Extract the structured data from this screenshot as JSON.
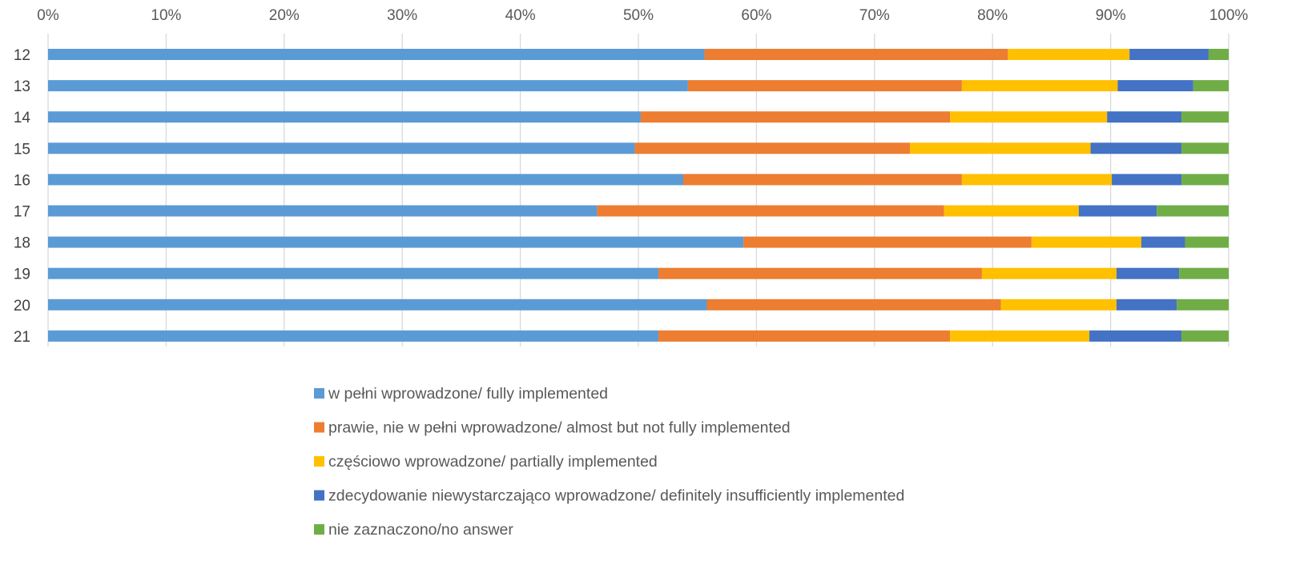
{
  "chart_data": {
    "type": "bar",
    "orientation": "horizontal",
    "stacking": "percent",
    "title": "",
    "xlabel": "",
    "ylabel": "",
    "xlim": [
      0,
      100
    ],
    "x_ticks": [
      "0%",
      "10%",
      "20%",
      "30%",
      "40%",
      "50%",
      "60%",
      "70%",
      "80%",
      "90%",
      "100%"
    ],
    "grid": "vertical",
    "legend_position": "bottom",
    "categories": [
      "12",
      "13",
      "14",
      "15",
      "16",
      "17",
      "18",
      "19",
      "20",
      "21"
    ],
    "series": [
      {
        "name": "w pełni wprowadzone/ fully implemented",
        "color": "#5B9BD5",
        "values": [
          55.6,
          54.2,
          50.2,
          49.7,
          53.8,
          46.5,
          58.9,
          51.7,
          55.8,
          51.7
        ]
      },
      {
        "name": "prawie, nie w pełni wprowadzone/ almost but not fully implemented",
        "color": "#ED7D31",
        "values": [
          25.7,
          23.2,
          26.2,
          23.3,
          23.6,
          29.4,
          24.4,
          27.4,
          24.9,
          24.7
        ]
      },
      {
        "name": "częściowo wprowadzone/ partially implemented",
        "color": "#FFC000",
        "values": [
          10.3,
          13.2,
          13.3,
          15.3,
          12.7,
          11.4,
          9.3,
          11.4,
          9.8,
          11.8
        ]
      },
      {
        "name": "zdecydowanie niewystarczająco wprowadzone/ definitely insufficiently implemented",
        "color": "#4472C4",
        "values": [
          6.7,
          6.4,
          6.3,
          7.7,
          5.9,
          6.6,
          3.7,
          5.3,
          5.1,
          7.8
        ]
      },
      {
        "name": "nie zaznaczono/no answer",
        "color": "#70AD47",
        "values": [
          1.7,
          3.0,
          4.0,
          4.0,
          4.0,
          6.1,
          3.7,
          4.2,
          4.4,
          4.0
        ]
      }
    ]
  }
}
